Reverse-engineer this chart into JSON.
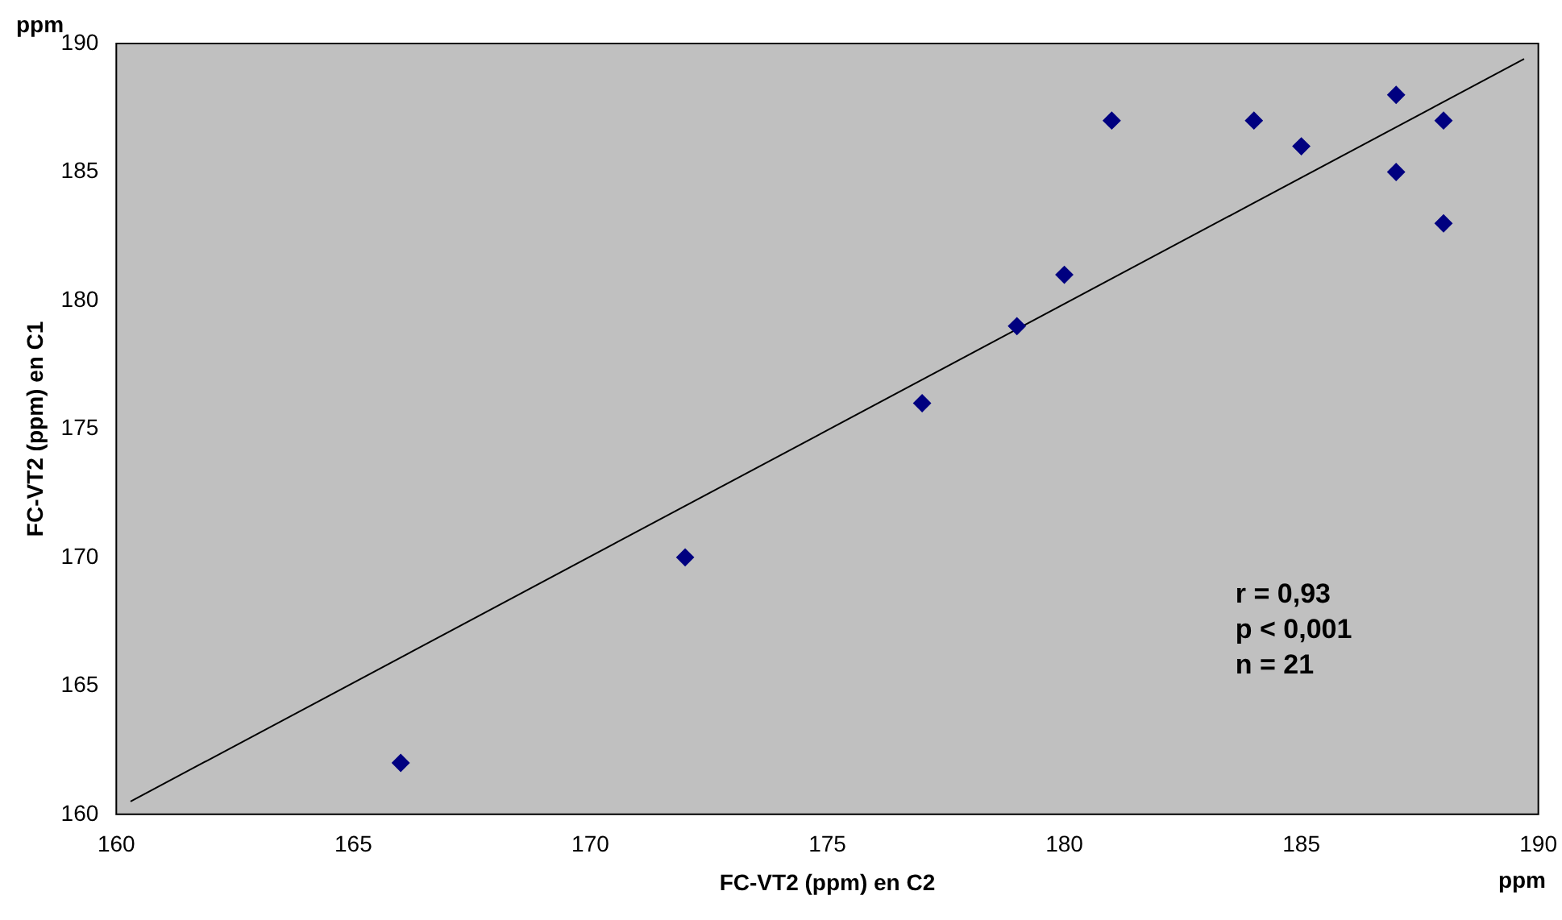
{
  "chart_data": {
    "type": "scatter",
    "xlabel": "FC-VT2 (ppm) en C2",
    "ylabel": "FC-VT2 (ppm) en C1",
    "annotations": [
      "ppm",
      "ppm",
      "r = 0,93",
      "p < 0,001",
      "n = 21"
    ],
    "xlim": [
      160,
      190
    ],
    "xticks": [
      160,
      165,
      170,
      175,
      180,
      185,
      190
    ],
    "ylim": [
      160,
      190
    ],
    "yticks": [
      160,
      165,
      170,
      175,
      180,
      185,
      190
    ],
    "grid": false,
    "legend": false,
    "marker": "diamond",
    "series": [
      {
        "type": "scatter",
        "color": "#000080",
        "x": [
          166,
          172,
          177,
          179,
          180,
          181,
          184,
          185,
          187,
          187,
          188,
          188
        ],
        "values": [
          162,
          170,
          176,
          179,
          181,
          187,
          187,
          186,
          188,
          185,
          187,
          183
        ]
      },
      {
        "type": "line",
        "color": "#000000",
        "x": [
          160.3,
          189.7
        ],
        "values": [
          160.5,
          189.4
        ],
        "marker": "none",
        "line_style": "solid"
      }
    ]
  }
}
